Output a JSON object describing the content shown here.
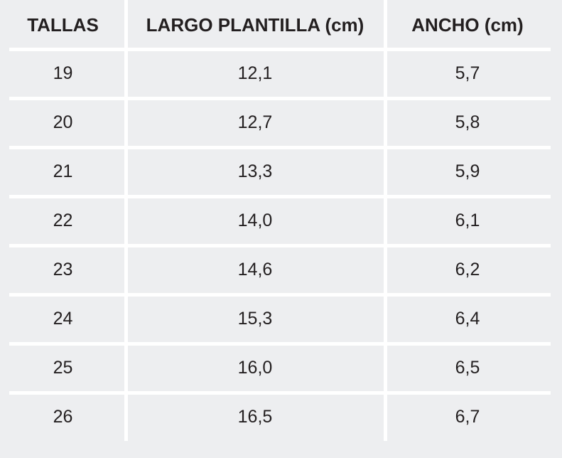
{
  "chart_data": {
    "type": "table",
    "columns": [
      "TALLAS",
      "LARGO PLANTILLA (cm)",
      "ANCHO (cm)"
    ],
    "rows": [
      [
        "19",
        "12,1",
        "5,7"
      ],
      [
        "20",
        "12,7",
        "5,8"
      ],
      [
        "21",
        "13,3",
        "5,9"
      ],
      [
        "22",
        "14,0",
        "6,1"
      ],
      [
        "23",
        "14,6",
        "6,2"
      ],
      [
        "24",
        "15,3",
        "6,4"
      ],
      [
        "25",
        "16,0",
        "6,5"
      ],
      [
        "26",
        "16,5",
        "6,7"
      ]
    ],
    "series": [
      {
        "name": "TALLAS",
        "values": [
          19,
          20,
          21,
          22,
          23,
          24,
          25,
          26
        ]
      },
      {
        "name": "LARGO PLANTILLA (cm)",
        "values": [
          12.1,
          12.7,
          13.3,
          14.0,
          14.6,
          15.3,
          16.0,
          16.5
        ]
      },
      {
        "name": "ANCHO (cm)",
        "values": [
          5.7,
          5.8,
          5.9,
          6.1,
          6.2,
          6.4,
          6.5,
          6.7
        ]
      }
    ],
    "decimal_separator": ","
  },
  "colors": {
    "background": "#edeef0",
    "divider": "#ffffff",
    "text": "#231f20"
  }
}
